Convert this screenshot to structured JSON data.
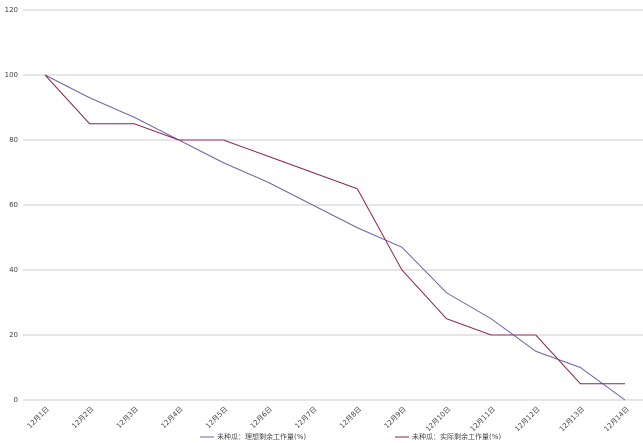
{
  "chart_data": {
    "type": "line",
    "categories": [
      "12月1日",
      "12月2日",
      "12月3日",
      "12月4日",
      "12月5日",
      "12月6日",
      "12月7日",
      "12月8日",
      "12月9日",
      "12月10日",
      "12月11日",
      "12月12日",
      "12月13日",
      "12月14日"
    ],
    "series": [
      {
        "name": "未种瓜：理想剩余工作量(%)",
        "color": "#6f64a8",
        "values": [
          100,
          93,
          87,
          80,
          73,
          67,
          60,
          53,
          47,
          33,
          25,
          15,
          10,
          0
        ]
      },
      {
        "name": "未种瓜：实际剩余工作量(%)",
        "color": "#8b2252",
        "values": [
          100,
          85,
          85,
          80,
          80,
          75,
          70,
          65,
          40,
          25,
          20,
          20,
          5,
          5
        ]
      }
    ],
    "ylim": [
      0,
      120
    ],
    "yticks": [
      0,
      20,
      40,
      60,
      80,
      100,
      120
    ],
    "grid": true,
    "legend": "bottom"
  }
}
